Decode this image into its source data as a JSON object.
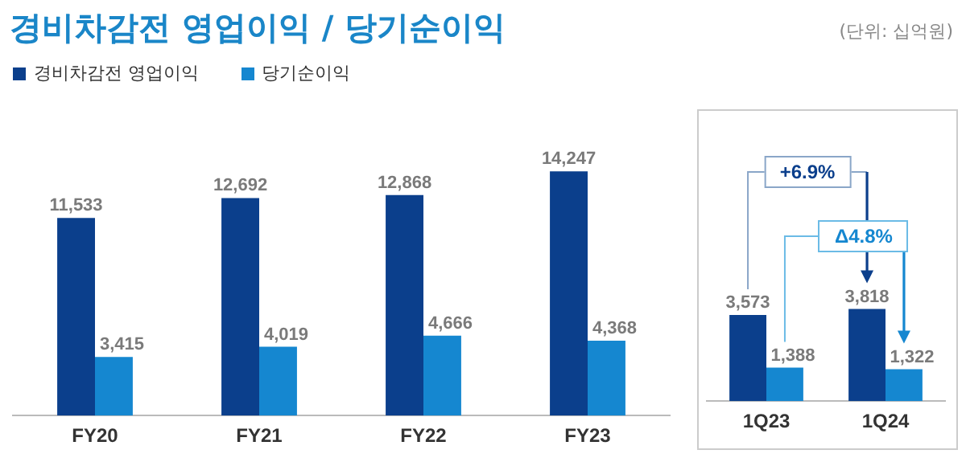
{
  "chart_data": [
    {
      "type": "bar",
      "title": "경비차감전 영업이익 / 당기순이익",
      "annotations": [
        "(단위: 십억원)"
      ],
      "categories": [
        "FY20",
        "FY21",
        "FY22",
        "FY23"
      ],
      "series": [
        {
          "name": "경비차감전 영업이익",
          "color": "#0b3f8c",
          "values": [
            11533,
            12692,
            12868,
            14247
          ],
          "value_labels": [
            "11,533",
            "12,692",
            "12,868",
            "14,247"
          ]
        },
        {
          "name": "당기순이익",
          "color": "#1587d0",
          "values": [
            3415,
            4019,
            4666,
            4368
          ],
          "value_labels": [
            "3,415",
            "4,019",
            "4,666",
            "4,368"
          ]
        }
      ],
      "legend": "top left",
      "grid": false
    },
    {
      "type": "bar",
      "categories": [
        "1Q23",
        "1Q24"
      ],
      "annotations": [
        "+6.9%",
        "Δ4.8%"
      ],
      "series": [
        {
          "color": "#0b3f8c",
          "values": [
            3573,
            3818
          ],
          "value_labels": [
            "3,573",
            "3,818"
          ]
        },
        {
          "color": "#1587d0",
          "values": [
            1388,
            1322
          ],
          "value_labels": [
            "1,388",
            "1,322"
          ]
        }
      ],
      "grid": false
    }
  ]
}
